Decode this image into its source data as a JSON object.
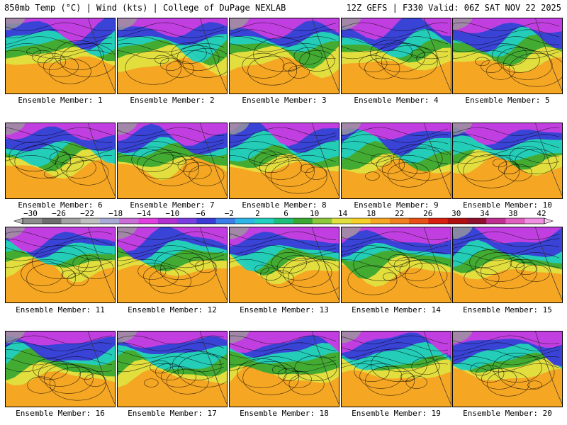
{
  "header": {
    "left": "850mb Temp (°C) | Wind (kts) | College of DuPage NEXLAB",
    "right": "12Z GEFS | F330 Valid: 06Z SAT NOV 22 2025"
  },
  "panels": [
    {
      "label": "Ensemble Member: 1"
    },
    {
      "label": "Ensemble Member: 2"
    },
    {
      "label": "Ensemble Member: 3"
    },
    {
      "label": "Ensemble Member: 4"
    },
    {
      "label": "Ensemble Member: 5"
    },
    {
      "label": "Ensemble Member: 6"
    },
    {
      "label": "Ensemble Member: 7"
    },
    {
      "label": "Ensemble Member: 8"
    },
    {
      "label": "Ensemble Member: 9"
    },
    {
      "label": "Ensemble Member: 10"
    },
    {
      "label": "Ensemble Member: 11"
    },
    {
      "label": "Ensemble Member: 12"
    },
    {
      "label": "Ensemble Member: 13"
    },
    {
      "label": "Ensemble Member: 14"
    },
    {
      "label": "Ensemble Member: 15"
    },
    {
      "label": "Ensemble Member: 16"
    },
    {
      "label": "Ensemble Member: 17"
    },
    {
      "label": "Ensemble Member: 18"
    },
    {
      "label": "Ensemble Member: 19"
    },
    {
      "label": "Ensemble Member: 20"
    }
  ],
  "colorbar": {
    "ticks": [
      "−30",
      "−26",
      "−22",
      "−18",
      "−14",
      "−10",
      "−6",
      "−2",
      "2",
      "6",
      "10",
      "14",
      "18",
      "22",
      "26",
      "30",
      "34",
      "38",
      "42"
    ],
    "colors": [
      "#8c8c8c",
      "#6e6e6e",
      "#a3a3a3",
      "#bfbfbf",
      "#a9a9d6",
      "#c86ed6",
      "#e040e0",
      "#b030d0",
      "#7a3fe0",
      "#3b3bd6",
      "#3b7fe6",
      "#2fb6e6",
      "#22cfc0",
      "#1fbf7a",
      "#3aa832",
      "#8cc83a",
      "#e0e040",
      "#f5d02a",
      "#f5a623",
      "#f08020",
      "#e85018",
      "#d82010",
      "#b01010",
      "#901030",
      "#c03090",
      "#e060c0",
      "#f090e0"
    ]
  },
  "palette": {
    "polar": "#c83fe0",
    "cold": "#3b3bd6",
    "cool": "#22cfc0",
    "mild": "#3aa832",
    "warm": "#e0e040",
    "hot": "#f5a623"
  }
}
